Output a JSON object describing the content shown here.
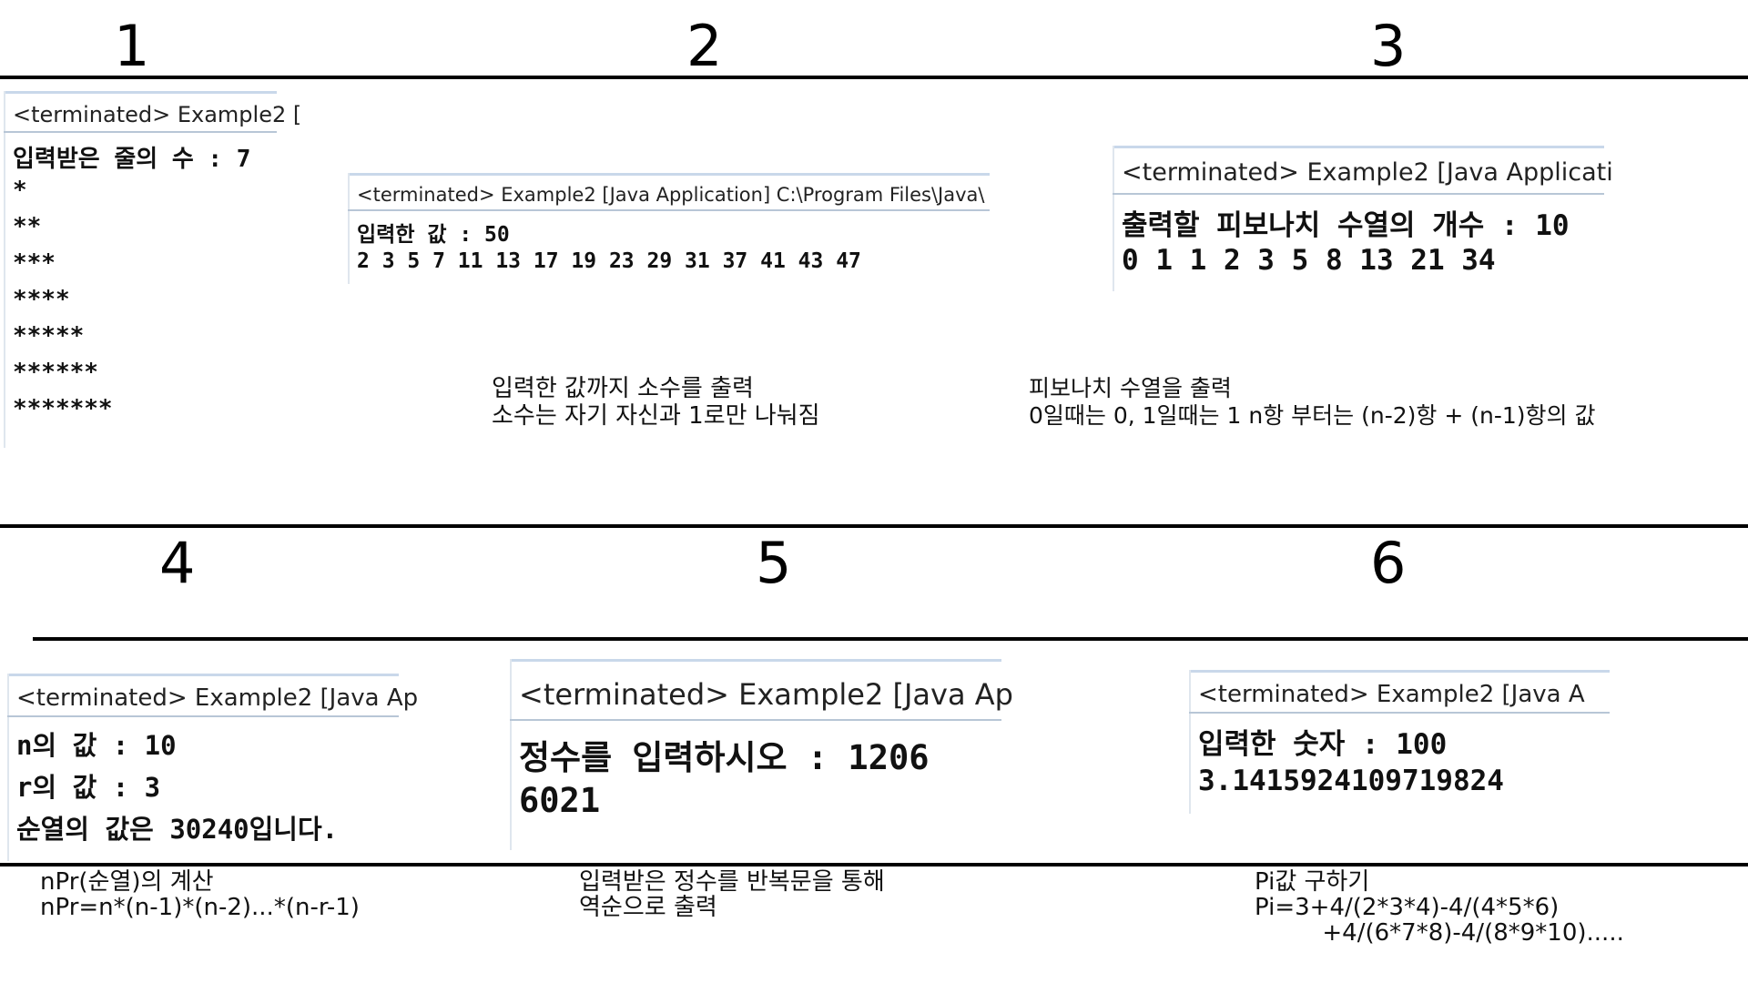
{
  "sections": [
    {
      "number": "1"
    },
    {
      "number": "2"
    },
    {
      "number": "3"
    },
    {
      "number": "4"
    },
    {
      "number": "5"
    },
    {
      "number": "6"
    }
  ],
  "consoles": {
    "c1": {
      "header": "<terminated> Example2 [",
      "lines": [
        "입력받은 줄의 수 : 7",
        "      *",
        "     **",
        "    ***",
        "   ****",
        "  *****",
        " ******",
        "*******"
      ]
    },
    "c2": {
      "header": "<terminated> Example2 [Java Application] C:\\Program Files\\Java\\",
      "lines": [
        "입력한 값 : 50",
        "2 3 5 7 11 13 17 19 23 29 31 37 41 43 47"
      ]
    },
    "c3": {
      "header": "<terminated> Example2 [Java Applicati",
      "lines": [
        "출력할 피보나치 수열의 개수 : 10",
        "0 1 1 2 3 5 8 13 21 34"
      ]
    },
    "c4": {
      "header": "<terminated> Example2 [Java Ap",
      "lines": [
        "n의 값 : 10",
        "r의 값 : 3",
        "순열의 값은 30240입니다."
      ]
    },
    "c5": {
      "header": "<terminated> Example2 [Java Ap",
      "lines": [
        "정수를 입력하시오 : 1206",
        "6021"
      ]
    },
    "c6": {
      "header": "<terminated> Example2 [Java A",
      "lines": [
        "입력한 숫자 : 100",
        "3.1415924109719824"
      ]
    }
  },
  "notes": {
    "n2": "입력한 값까지 소수를 출력\n소수는 자기 자신과 1로만 나눠짐",
    "n3": "피보나치 수열을 출력\n0일때는 0, 1일때는 1 n항 부터는 (n-2)항 + (n-1)항의 값",
    "n4": "nPr(순열)의 계산\nnPr=n*(n-1)*(n-2)...*(n-r-1)",
    "n5": "입력받은 정수를 반복문을 통해\n역순으로 출력",
    "n6": "Pi값 구하기\nPi=3+4/(2*3*4)-4/(4*5*6)\n         +4/(6*7*8)-4/(8*9*10)....."
  }
}
